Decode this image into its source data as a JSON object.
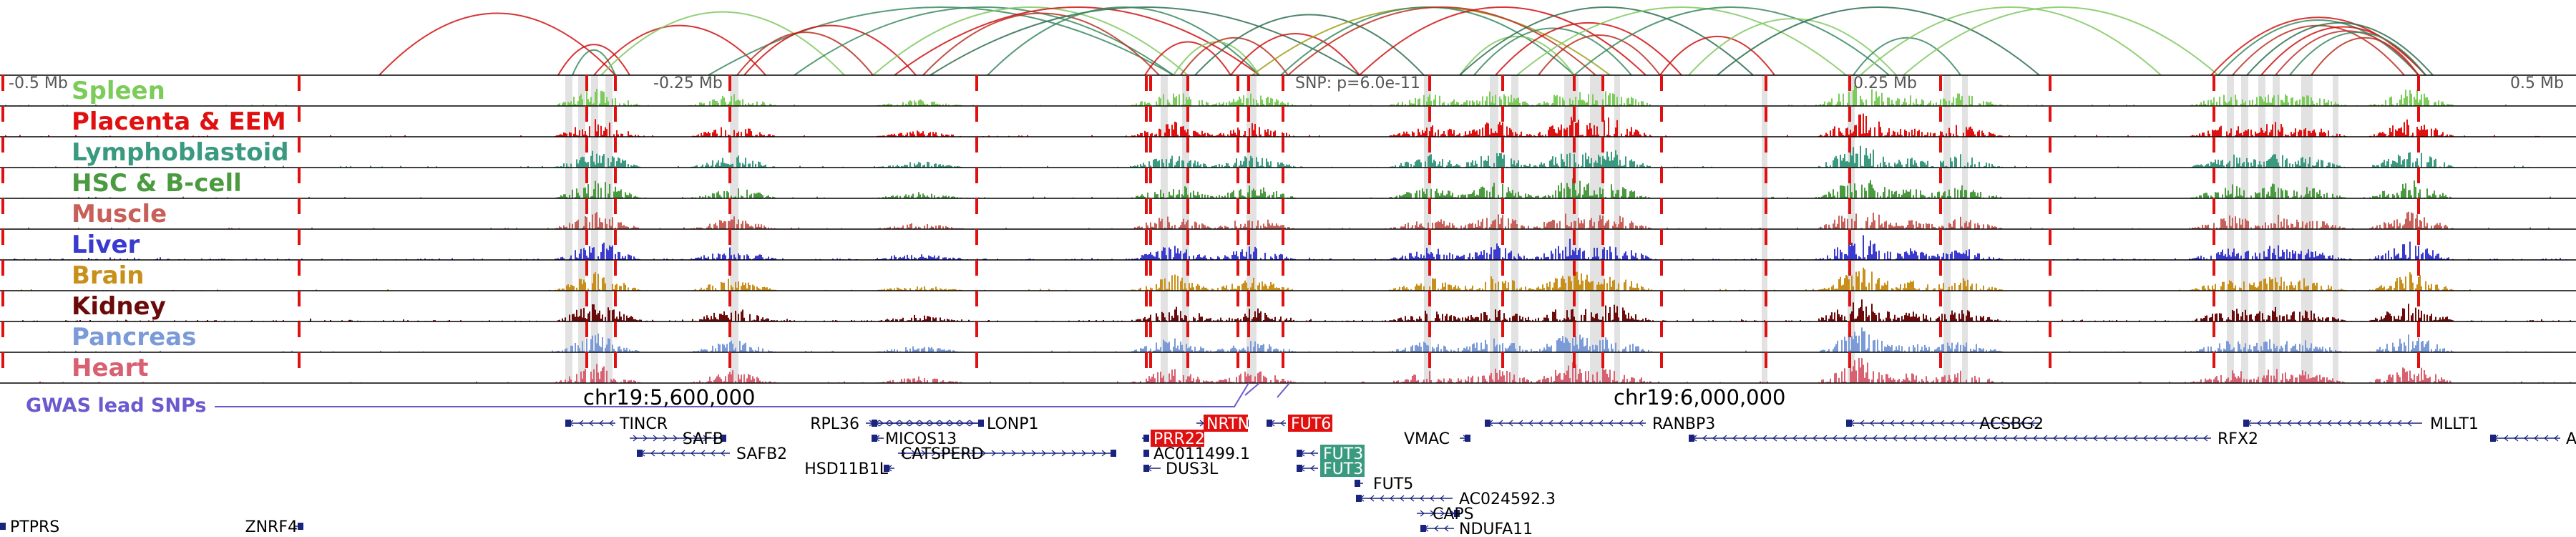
{
  "axis": {
    "ruler_labels": [
      "-0.5 Mb",
      "-0.25 Mb",
      "0.25 Mb",
      "0.5 Mb"
    ],
    "snp_label": "SNP: p=6.0e-11",
    "coord_labels": [
      "chr19:5,600,000",
      "chr19:6,000,000"
    ]
  },
  "tracks": [
    {
      "name": "Spleen",
      "color": "#7ccc5a"
    },
    {
      "name": "Placenta & EEM",
      "color": "#e01010"
    },
    {
      "name": "Lymphoblastoid",
      "color": "#3a9a80"
    },
    {
      "name": "HSC & B-cell",
      "color": "#4a9a40"
    },
    {
      "name": "Muscle",
      "color": "#c8605a"
    },
    {
      "name": "Liver",
      "color": "#3a3ad0"
    },
    {
      "name": "Brain",
      "color": "#c8901a"
    },
    {
      "name": "Kidney",
      "color": "#6a0a0a"
    },
    {
      "name": "Pancreas",
      "color": "#7a9ad8"
    },
    {
      "name": "Heart",
      "color": "#d86070"
    }
  ],
  "gwas": {
    "label": "GWAS lead SNPs",
    "color": "#6a5acd"
  },
  "genes": [
    {
      "name": "TINCR",
      "strand": "-",
      "row": 1
    },
    {
      "name": "SAFB",
      "strand": "+",
      "row": 2
    },
    {
      "name": "SAFB2",
      "strand": "-",
      "row": 3
    },
    {
      "name": "RPL36",
      "strand": "+",
      "row": 1
    },
    {
      "name": "LONP1",
      "strand": "-",
      "row": 1
    },
    {
      "name": "MICOS13",
      "strand": "-",
      "row": 2
    },
    {
      "name": "CATSPERD",
      "strand": "+",
      "row": 3
    },
    {
      "name": "HSD11B1L",
      "strand": "-",
      "row": 4
    },
    {
      "name": "PRR22",
      "strand": "+",
      "row": 2,
      "highlight": "#e01010"
    },
    {
      "name": "NRTN",
      "strand": "+",
      "row": 1,
      "highlight": "#e01010"
    },
    {
      "name": "FUT6",
      "strand": "-",
      "row": 1,
      "highlight": "#e01010"
    },
    {
      "name": "AC011499.1",
      "strand": "+",
      "row": 3
    },
    {
      "name": "DUS3L",
      "strand": "-",
      "row": 4
    },
    {
      "name": "FUT3",
      "strand": "-",
      "row": 3,
      "highlight": "#3a9a80"
    },
    {
      "name": "FUT3",
      "strand": "-",
      "row": 4,
      "highlight": "#3a9a80"
    },
    {
      "name": "FUT5",
      "strand": "-",
      "row": 5
    },
    {
      "name": "AC024592.3",
      "strand": "-",
      "row": 6
    },
    {
      "name": "CAPS",
      "strand": "+",
      "row": 7
    },
    {
      "name": "NDUFA11",
      "strand": "-",
      "row": 8
    },
    {
      "name": "VMAC",
      "strand": "+",
      "row": 2
    },
    {
      "name": "RANBP3",
      "strand": "-",
      "row": 1
    },
    {
      "name": "ACSBG2",
      "strand": "-",
      "row": 1
    },
    {
      "name": "RFX2",
      "strand": "-",
      "row": 2
    },
    {
      "name": "MLLT1",
      "strand": "-",
      "row": 1
    },
    {
      "name": "AC",
      "strand": "-",
      "row": 2
    },
    {
      "name": "PTPRS",
      "strand": "-",
      "row": 9
    },
    {
      "name": "ZNRF4",
      "strand": "+",
      "row": 9
    }
  ]
}
